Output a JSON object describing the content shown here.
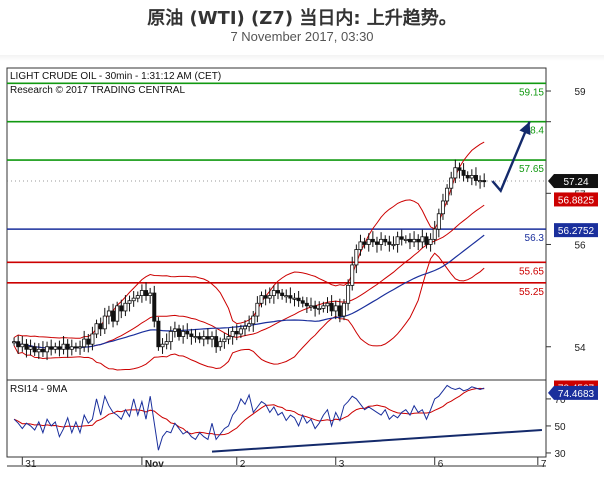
{
  "header": {
    "title": "原油 (WTI) (Z7) 当日内: 上升趋势。",
    "subtitle": "7 November 2017, 03:30"
  },
  "chart_data": [
    {
      "type": "candlestick",
      "title": "LIGHT CRUDE OIL - 30min - 1:31:12 AM (CET)",
      "subtitle": "Research © 2017 TRADING CENTRAL",
      "ylim": [
        53.35,
        59.45
      ],
      "yticks": [
        54,
        56,
        57,
        58.4,
        59
      ],
      "ytick_labels": [
        "54",
        "56",
        "57",
        "",
        "59"
      ],
      "xticks": [
        "31",
        "Nov",
        "2",
        "3",
        "6",
        "7"
      ],
      "xtick_bars": [
        2,
        31,
        54,
        78,
        102,
        127
      ],
      "n_bars": 129,
      "last_price": 57.24,
      "last_price_label": "57.24",
      "price_tags": [
        {
          "label": "56.8825",
          "value": 56.88,
          "color": "#cc0000"
        },
        {
          "label": "56.2752",
          "value": 56.28,
          "color": "#1a2f9c"
        }
      ],
      "levels": [
        {
          "label": "59.15",
          "value": 59.15,
          "color": "#119911"
        },
        {
          "label": "58.4",
          "value": 58.4,
          "color": "#119911"
        },
        {
          "label": "57.65",
          "value": 57.65,
          "color": "#119911"
        },
        {
          "label": "56.3",
          "value": 56.3,
          "color": "#1a2f9c"
        },
        {
          "label": "55.65",
          "value": 55.65,
          "color": "#cc0000"
        },
        {
          "label": "55.25",
          "value": 55.25,
          "color": "#cc0000"
        }
      ],
      "closes": [
        54.1,
        54.0,
        54.05,
        53.95,
        54.0,
        53.9,
        53.95,
        53.9,
        54.0,
        53.95,
        54.0,
        53.95,
        54.05,
        53.95,
        54.0,
        53.98,
        54.0,
        54.15,
        54.05,
        54.25,
        54.45,
        54.35,
        54.6,
        54.7,
        54.5,
        54.8,
        54.7,
        54.85,
        54.9,
        54.95,
        55.0,
        55.1,
        55.0,
        55.05,
        54.5,
        54.0,
        54.05,
        54.1,
        54.3,
        54.35,
        54.2,
        54.3,
        54.25,
        54.2,
        54.2,
        54.15,
        54.2,
        54.15,
        54.2,
        54.0,
        54.1,
        54.15,
        54.2,
        54.3,
        54.25,
        54.35,
        54.4,
        54.45,
        54.6,
        54.85,
        55.0,
        54.95,
        55.0,
        55.1,
        55.05,
        55.0,
        55.0,
        54.95,
        54.95,
        54.9,
        54.85,
        54.8,
        54.8,
        54.75,
        54.75,
        54.8,
        54.85,
        54.7,
        54.8,
        54.6,
        54.85,
        55.2,
        55.6,
        55.9,
        56.05,
        56.0,
        56.1,
        56.05,
        56.0,
        56.1,
        56.05,
        56.0,
        56.0,
        56.15,
        56.1,
        56.1,
        56.05,
        56.1,
        56.05,
        56.15,
        56.0,
        56.1,
        56.3,
        56.6,
        56.85,
        57.1,
        57.3,
        57.5,
        57.45,
        57.35,
        57.3,
        57.35,
        57.25,
        57.25,
        57.24
      ],
      "projection": [
        [
          116,
          57.24
        ],
        [
          118,
          57.05
        ],
        [
          125,
          58.4
        ]
      ],
      "rsi": {
        "label": "RSI14 - 9MA",
        "ylim": [
          27,
          84
        ],
        "yticks": [
          30,
          50,
          70
        ],
        "tags": [
          {
            "label": "78.4567",
            "value": 78.46,
            "color": "#cc0000"
          },
          {
            "label": "74.4683",
            "value": 74.47,
            "color": "#1a2f9c"
          }
        ],
        "trendline": [
          [
            48,
            31
          ],
          [
            128,
            47
          ]
        ],
        "values": [
          55,
          52,
          48,
          52,
          50,
          47,
          53,
          45,
          55,
          50,
          53,
          42,
          48,
          56,
          45,
          53,
          45,
          58,
          52,
          55,
          70,
          58,
          72,
          65,
          60,
          58,
          55,
          62,
          57,
          70,
          58,
          68,
          55,
          72,
          52,
          32,
          42,
          46,
          45,
          52,
          48,
          44,
          46,
          42,
          40,
          45,
          42,
          40,
          52,
          40,
          44,
          48,
          50,
          58,
          62,
          70,
          66,
          73,
          60,
          64,
          68,
          66,
          60,
          64,
          58,
          60,
          54,
          58,
          56,
          50,
          58,
          52,
          55,
          48,
          52,
          58,
          62,
          50,
          60,
          54,
          65,
          68,
          72,
          70,
          66,
          62,
          64,
          62,
          60,
          58,
          62,
          55,
          58,
          56,
          60,
          62,
          58,
          65,
          60,
          62,
          55,
          62,
          70,
          72,
          76,
          80,
          78,
          77,
          78,
          76,
          77,
          79,
          78,
          77,
          78
        ]
      }
    }
  ]
}
